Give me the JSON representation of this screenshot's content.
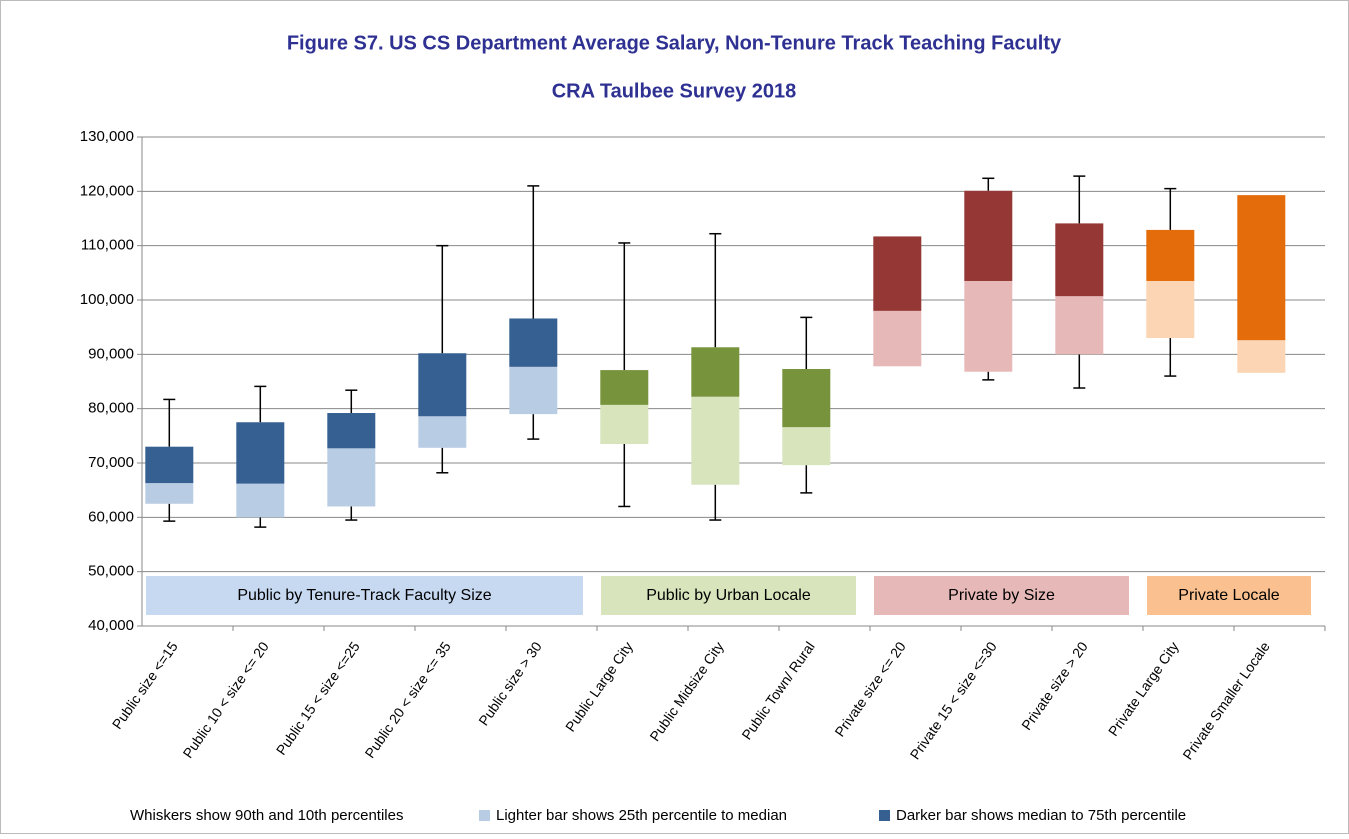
{
  "chart_data": {
    "type": "box",
    "title": "Figure S7. US CS Department Average Salary, Non-Tenure Track Teaching Faculty",
    "subtitle": "CRA Taulbee Survey 2018",
    "ylim": [
      40000,
      130000
    ],
    "yticks": [
      {
        "value": 40000,
        "label": "40,000"
      },
      {
        "value": 50000,
        "label": "50,000"
      },
      {
        "value": 60000,
        "label": "60,000"
      },
      {
        "value": 70000,
        "label": "70,000"
      },
      {
        "value": 80000,
        "label": "80,000"
      },
      {
        "value": 90000,
        "label": "90,000"
      },
      {
        "value": 100000,
        "label": "100,000"
      },
      {
        "value": 110000,
        "label": "110,000"
      },
      {
        "value": 120000,
        "label": "120,000"
      },
      {
        "value": 130000,
        "label": "130,000"
      }
    ],
    "grid": true,
    "groups": [
      {
        "label": "Public by Tenure-Track Faculty Size",
        "light_color": "#b8cce4",
        "dark_color": "#366092",
        "label_color": "#c6d9f1",
        "categories": [
          "Public size <=15",
          "Public 10 < size <= 20",
          "Public 15 < size <=25",
          "Public 20 < size <= 35",
          "Public size > 30"
        ],
        "p10": [
          59300,
          58200,
          59500,
          68200,
          74400
        ],
        "p25": [
          62500,
          60000,
          62000,
          72800,
          79000
        ],
        "median": [
          66300,
          66200,
          72700,
          78600,
          87700
        ],
        "p75": [
          73000,
          77500,
          79200,
          90200,
          96600
        ],
        "p90": [
          81700,
          84100,
          83400,
          110000,
          121000
        ]
      },
      {
        "label": "Public by Urban Locale",
        "light_color": "#d7e4bc",
        "dark_color": "#77933c",
        "label_color": "#d7e4bc",
        "categories": [
          "Public Large City",
          "Public Midsize City",
          "Public Town/ Rural"
        ],
        "p10": [
          62000,
          59500,
          64500
        ],
        "p25": [
          73500,
          66000,
          69600
        ],
        "median": [
          80700,
          82200,
          76600
        ],
        "p75": [
          87100,
          91300,
          87300
        ],
        "p90": [
          110500,
          112200,
          96800
        ]
      },
      {
        "label": "Private by Size",
        "light_color": "#e6b9b8",
        "dark_color": "#953735",
        "label_color": "#e6b9b8",
        "categories": [
          "Private size <= 20",
          "Private 15 < size <=30",
          "Private size > 20"
        ],
        "p10": [
          null,
          85300,
          83800
        ],
        "p25": [
          87800,
          86800,
          90000
        ],
        "median": [
          98000,
          103500,
          100700
        ],
        "p75": [
          111700,
          120100,
          114100
        ],
        "p90": [
          null,
          122400,
          122800
        ]
      },
      {
        "label": "Private Locale",
        "light_color": "#fcd5b4",
        "dark_color": "#e46c0a",
        "label_color": "#fac090",
        "categories": [
          "Private Large City",
          "Private Smaller Locale"
        ],
        "p10": [
          86000,
          null
        ],
        "p25": [
          93000,
          86600
        ],
        "median": [
          103500,
          92600
        ],
        "p75": [
          112900,
          119300
        ],
        "p90": [
          120500,
          null
        ]
      }
    ],
    "footnotes": [
      {
        "text": "Whiskers show 90th and 10th percentiles"
      },
      {
        "text": "Lighter bar shows 25th percentile to median",
        "color": "#b8cce4"
      },
      {
        "text": "Darker bar shows median to 75th percentile",
        "color": "#366092"
      }
    ]
  }
}
